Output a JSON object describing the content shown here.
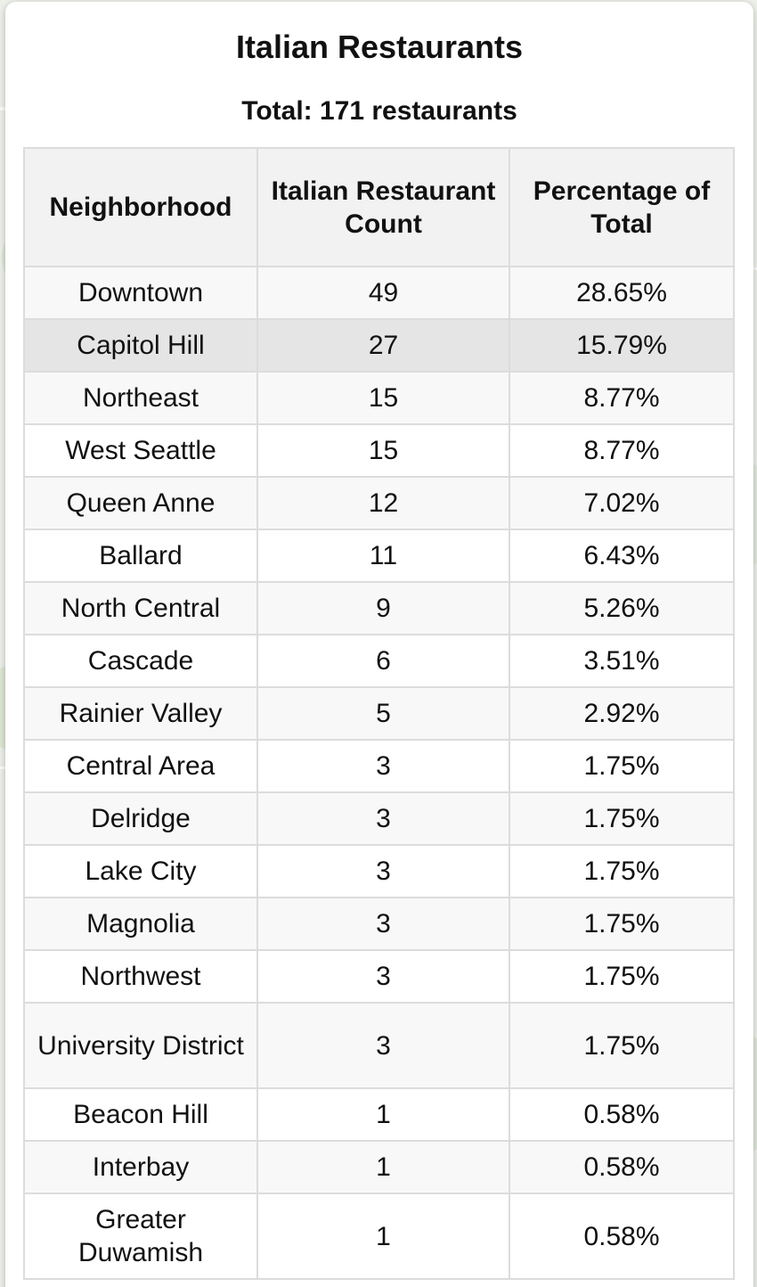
{
  "popup": {
    "title": "Italian Restaurants",
    "total": "Total: 171 restaurants"
  },
  "table": {
    "headers": [
      "Neighborhood",
      "Italian Restaurant Count",
      "Percentage of Total"
    ],
    "rows": [
      {
        "neighborhood": "Downtown",
        "count": "49",
        "percent": "28.65%"
      },
      {
        "neighborhood": "Capitol Hill",
        "count": "27",
        "percent": "15.79%"
      },
      {
        "neighborhood": "Northeast",
        "count": "15",
        "percent": "8.77%"
      },
      {
        "neighborhood": "West Seattle",
        "count": "15",
        "percent": "8.77%"
      },
      {
        "neighborhood": "Queen Anne",
        "count": "12",
        "percent": "7.02%"
      },
      {
        "neighborhood": "Ballard",
        "count": "11",
        "percent": "6.43%"
      },
      {
        "neighborhood": "North Central",
        "count": "9",
        "percent": "5.26%"
      },
      {
        "neighborhood": "Cascade",
        "count": "6",
        "percent": "3.51%"
      },
      {
        "neighborhood": "Rainier Valley",
        "count": "5",
        "percent": "2.92%"
      },
      {
        "neighborhood": "Central Area",
        "count": "3",
        "percent": "1.75%"
      },
      {
        "neighborhood": "Delridge",
        "count": "3",
        "percent": "1.75%"
      },
      {
        "neighborhood": "Lake City",
        "count": "3",
        "percent": "1.75%"
      },
      {
        "neighborhood": "Magnolia",
        "count": "3",
        "percent": "1.75%"
      },
      {
        "neighborhood": "Northwest",
        "count": "3",
        "percent": "1.75%"
      },
      {
        "neighborhood": "University District",
        "count": "3",
        "percent": "1.75%"
      },
      {
        "neighborhood": "Beacon Hill",
        "count": "1",
        "percent": "0.58%"
      },
      {
        "neighborhood": "Interbay",
        "count": "1",
        "percent": "0.58%"
      },
      {
        "neighborhood": "Greater Duwamish",
        "count": "1",
        "percent": "0.58%"
      }
    ],
    "highlighted_row": "Capitol Hill"
  }
}
